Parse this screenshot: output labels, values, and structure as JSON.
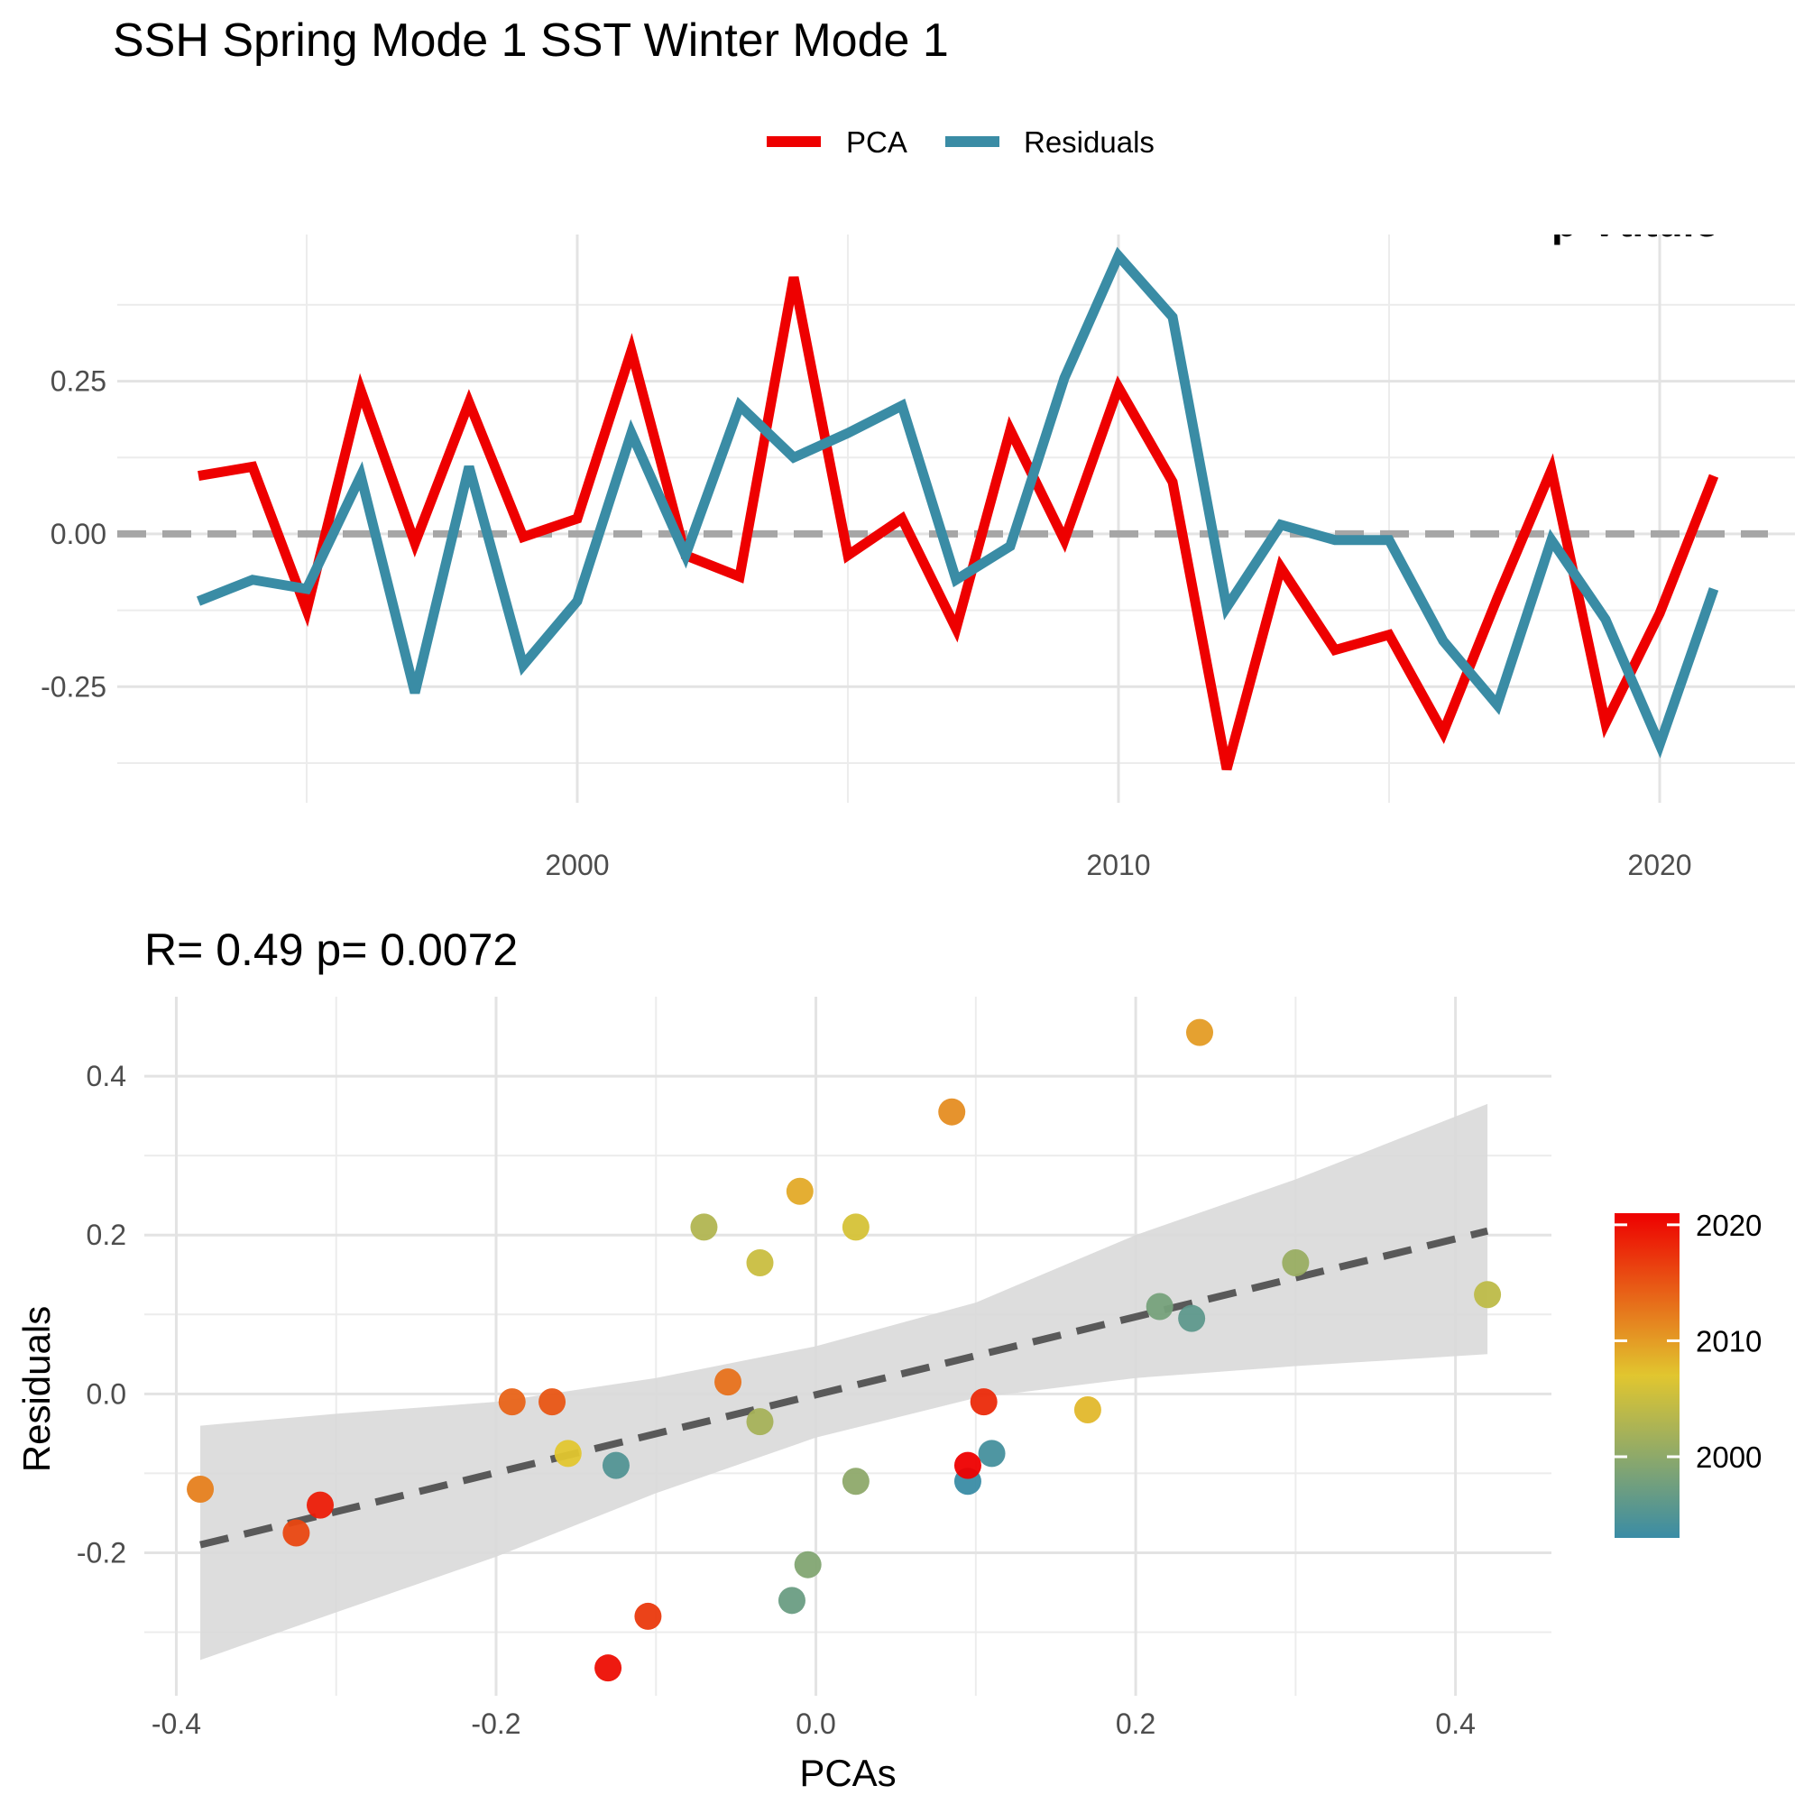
{
  "chart_data": [
    {
      "type": "line",
      "title": "SSH Spring Mode 1 SST Winter Mode 1",
      "overlay_text": "p-Vtitulo",
      "x": [
        1993,
        1994,
        1995,
        1996,
        1997,
        1998,
        1999,
        2000,
        2001,
        2002,
        2003,
        2004,
        2005,
        2006,
        2007,
        2008,
        2009,
        2010,
        2011,
        2012,
        2013,
        2014,
        2015,
        2016,
        2017,
        2018,
        2019,
        2020,
        2021
      ],
      "series": [
        {
          "name": "PCA",
          "color": "#ee0000",
          "values": [
            0.095,
            0.11,
            -0.125,
            0.235,
            -0.015,
            0.215,
            -0.005,
            0.025,
            0.3,
            -0.035,
            -0.07,
            0.42,
            -0.035,
            0.025,
            -0.155,
            0.17,
            -0.01,
            0.24,
            0.085,
            -0.385,
            -0.055,
            -0.19,
            -0.165,
            -0.325,
            -0.105,
            0.105,
            -0.31,
            -0.13,
            0.095
          ]
        },
        {
          "name": "Residuals",
          "color": "#3a8ca5",
          "values": [
            -0.11,
            -0.075,
            -0.09,
            0.095,
            -0.26,
            0.11,
            -0.215,
            -0.11,
            0.165,
            -0.035,
            0.21,
            0.125,
            0.165,
            0.21,
            -0.075,
            -0.02,
            0.255,
            0.455,
            0.355,
            -0.12,
            0.015,
            -0.01,
            -0.01,
            -0.175,
            -0.28,
            -0.01,
            -0.14,
            -0.345,
            -0.09
          ]
        }
      ],
      "hline": 0,
      "xlim": [
        1991.5,
        2022.5
      ],
      "ylim": [
        -0.44,
        0.49
      ],
      "xticks": [
        2000,
        2010,
        2020
      ],
      "yticks": [
        -0.25,
        0.0,
        0.25
      ],
      "ytick_labels": [
        "-0.25",
        "0.00",
        "0.25"
      ],
      "legend": {
        "position": "top",
        "entries": [
          "PCA",
          "Residuals"
        ]
      },
      "grid": true
    },
    {
      "type": "scatter",
      "title": "R= 0.49  p= 0.0072",
      "xlabel": "PCAs",
      "ylabel": "Residuals",
      "xlim": [
        -0.42,
        0.46
      ],
      "ylim": [
        -0.38,
        0.5
      ],
      "xticks": [
        -0.4,
        -0.2,
        0.0,
        0.2,
        0.4
      ],
      "xtick_labels": [
        "-0.4",
        "-0.2",
        "0.0",
        "0.2",
        "0.4"
      ],
      "yticks": [
        -0.2,
        0.0,
        0.2,
        0.4
      ],
      "ytick_labels": [
        "-0.2",
        "0.0",
        "0.2",
        "0.4"
      ],
      "points": [
        {
          "x": 0.095,
          "y": -0.11,
          "year": 1993
        },
        {
          "x": 0.11,
          "y": -0.075,
          "year": 1994
        },
        {
          "x": -0.125,
          "y": -0.09,
          "year": 1995
        },
        {
          "x": 0.235,
          "y": 0.095,
          "year": 1996
        },
        {
          "x": -0.015,
          "y": -0.26,
          "year": 1997
        },
        {
          "x": 0.215,
          "y": 0.11,
          "year": 1998
        },
        {
          "x": -0.005,
          "y": -0.215,
          "year": 1999
        },
        {
          "x": 0.025,
          "y": -0.11,
          "year": 2000
        },
        {
          "x": 0.3,
          "y": 0.165,
          "year": 2001
        },
        {
          "x": -0.035,
          "y": -0.035,
          "year": 2002
        },
        {
          "x": -0.07,
          "y": 0.21,
          "year": 2003
        },
        {
          "x": 0.42,
          "y": 0.125,
          "year": 2004
        },
        {
          "x": -0.035,
          "y": 0.165,
          "year": 2005
        },
        {
          "x": 0.025,
          "y": 0.21,
          "year": 2006
        },
        {
          "x": -0.155,
          "y": -0.075,
          "year": 2007
        },
        {
          "x": 0.17,
          "y": -0.02,
          "year": 2008
        },
        {
          "x": -0.01,
          "y": 0.255,
          "year": 2009
        },
        {
          "x": 0.24,
          "y": 0.455,
          "year": 2010
        },
        {
          "x": 0.085,
          "y": 0.355,
          "year": 2011
        },
        {
          "x": -0.385,
          "y": -0.12,
          "year": 2012
        },
        {
          "x": -0.055,
          "y": 0.015,
          "year": 2013
        },
        {
          "x": -0.19,
          "y": -0.01,
          "year": 2014
        },
        {
          "x": -0.165,
          "y": -0.01,
          "year": 2015
        },
        {
          "x": -0.325,
          "y": -0.175,
          "year": 2016
        },
        {
          "x": -0.105,
          "y": -0.28,
          "year": 2017
        },
        {
          "x": 0.105,
          "y": -0.01,
          "year": 2018
        },
        {
          "x": -0.31,
          "y": -0.14,
          "year": 2019
        },
        {
          "x": -0.13,
          "y": -0.345,
          "year": 2020
        },
        {
          "x": 0.095,
          "y": -0.09,
          "year": 2021
        }
      ],
      "fit": {
        "x": [
          -0.385,
          0.42
        ],
        "y": [
          -0.19,
          0.205
        ],
        "style": "dashed",
        "color": "#595959"
      },
      "confidence_band": {
        "x": [
          -0.385,
          -0.3,
          -0.2,
          -0.1,
          0.0,
          0.1,
          0.2,
          0.3,
          0.42
        ],
        "lower": [
          -0.335,
          -0.275,
          -0.205,
          -0.125,
          -0.055,
          -0.005,
          0.02,
          0.035,
          0.05
        ],
        "upper": [
          -0.04,
          -0.025,
          -0.01,
          0.02,
          0.06,
          0.115,
          0.2,
          0.27,
          0.365
        ],
        "color": "#d9d9d9"
      },
      "colorbar": {
        "range": [
          1993,
          2021
        ],
        "ticks": [
          2000,
          2010,
          2020
        ],
        "tick_labels": [
          "2000",
          "2010",
          "2020"
        ],
        "colors": [
          "#3a8ca5",
          "#e1c62f",
          "#ee0000"
        ]
      },
      "grid": true
    }
  ]
}
